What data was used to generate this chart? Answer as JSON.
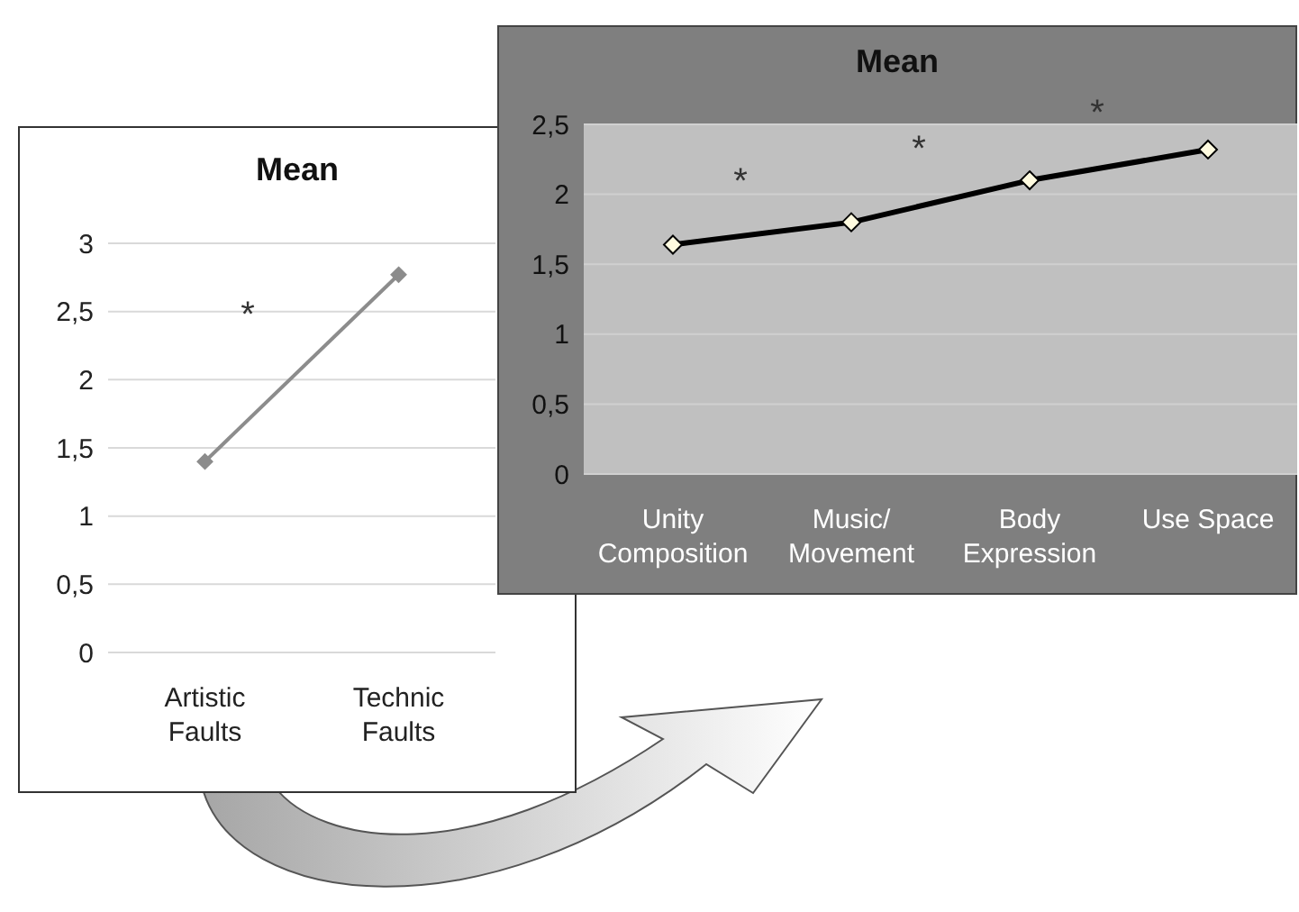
{
  "chart_data": [
    {
      "type": "line",
      "title": "Mean",
      "categories": [
        "Artistic Faults",
        "Technic Faults"
      ],
      "values": [
        1.4,
        2.77
      ],
      "color": "#8c8c8c",
      "marker": "diamond",
      "ylim": [
        0,
        3
      ],
      "yticks": [
        0,
        {
          "value": 0.5,
          "label": "0,5"
        },
        1,
        {
          "value": 1.5,
          "label": "1,5"
        },
        2,
        {
          "value": 2.5,
          "label": "2,5"
        },
        3
      ],
      "grid": "y",
      "annotations": [
        "*"
      ]
    },
    {
      "type": "line",
      "title": "Mean",
      "categories": [
        "Unity Composition",
        "Music/ Movement",
        "Body Expression",
        "Use Space"
      ],
      "values": [
        1.64,
        1.8,
        2.1,
        2.32
      ],
      "color": "#000000",
      "marker": "diamond",
      "ylim": [
        0,
        2.5
      ],
      "yticks": [
        0,
        {
          "value": 0.5,
          "label": "0,5"
        },
        1,
        {
          "value": 1.5,
          "label": "1,5"
        },
        2,
        {
          "value": 2.5,
          "label": "2,5"
        }
      ],
      "grid": "y",
      "annotations": [
        "*",
        "*",
        "*"
      ]
    }
  ]
}
